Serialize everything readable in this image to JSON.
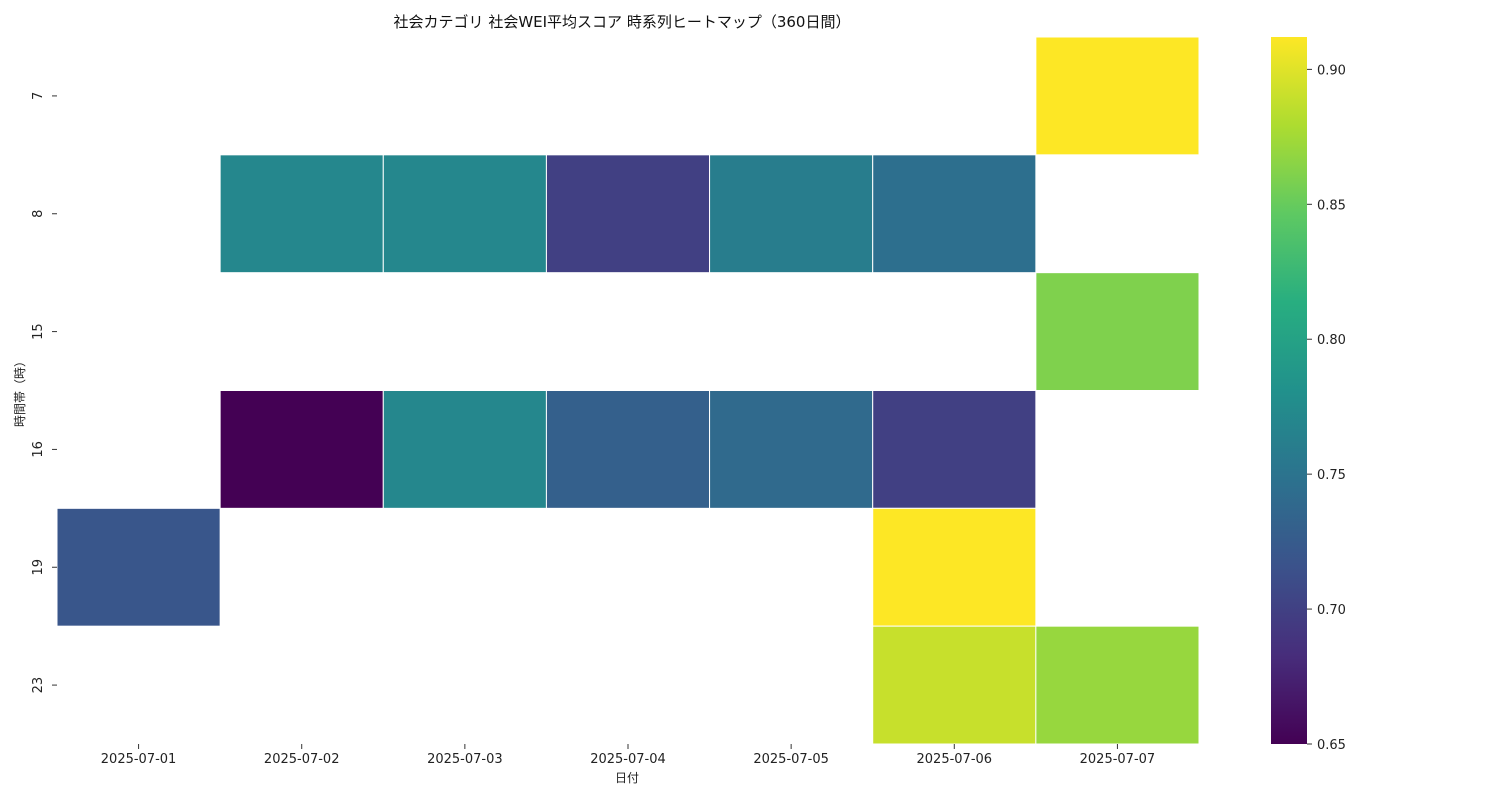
{
  "chart_data": {
    "type": "heatmap",
    "title": "社会カテゴリ 社会WEI平均スコア 時系列ヒートマップ（360日間）",
    "xlabel": "日付",
    "ylabel": "時間帯（時）",
    "x": [
      "2025-07-01",
      "2025-07-02",
      "2025-07-03",
      "2025-07-04",
      "2025-07-05",
      "2025-07-06",
      "2025-07-07"
    ],
    "y": [
      "7",
      "8",
      "15",
      "16",
      "19",
      "23"
    ],
    "values": [
      [
        null,
        null,
        null,
        null,
        null,
        null,
        0.912
      ],
      [
        null,
        0.77,
        0.77,
        0.7,
        0.76,
        0.745,
        null
      ],
      [
        null,
        null,
        null,
        null,
        null,
        null,
        0.86
      ],
      [
        null,
        0.65,
        0.77,
        0.73,
        0.74,
        0.7,
        null
      ],
      [
        0.72,
        null,
        null,
        null,
        null,
        0.912,
        null
      ],
      [
        null,
        null,
        null,
        null,
        null,
        0.89,
        0.87
      ]
    ],
    "colormap": "viridis",
    "colorbar": {
      "range": [
        0.65,
        0.912
      ],
      "ticks": [
        "0.65",
        "0.70",
        "0.75",
        "0.80",
        "0.85",
        "0.90"
      ]
    },
    "grid": false,
    "legend": "colorbar-right"
  }
}
